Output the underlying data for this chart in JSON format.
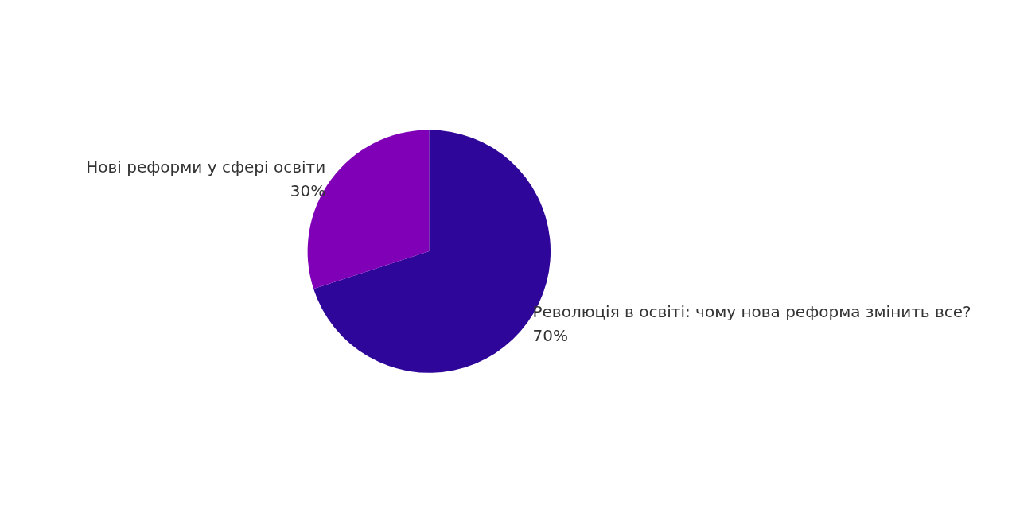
{
  "chart_data": {
    "type": "pie",
    "categories": [
      "Революція в освіті: чому нова реформа змінить все?",
      "Нові реформи у сфері освіти"
    ],
    "values": [
      70,
      30
    ],
    "value_labels": [
      "70%",
      "30%"
    ],
    "colors": [
      "#2e0699",
      "#8000b7"
    ],
    "legend": false
  }
}
